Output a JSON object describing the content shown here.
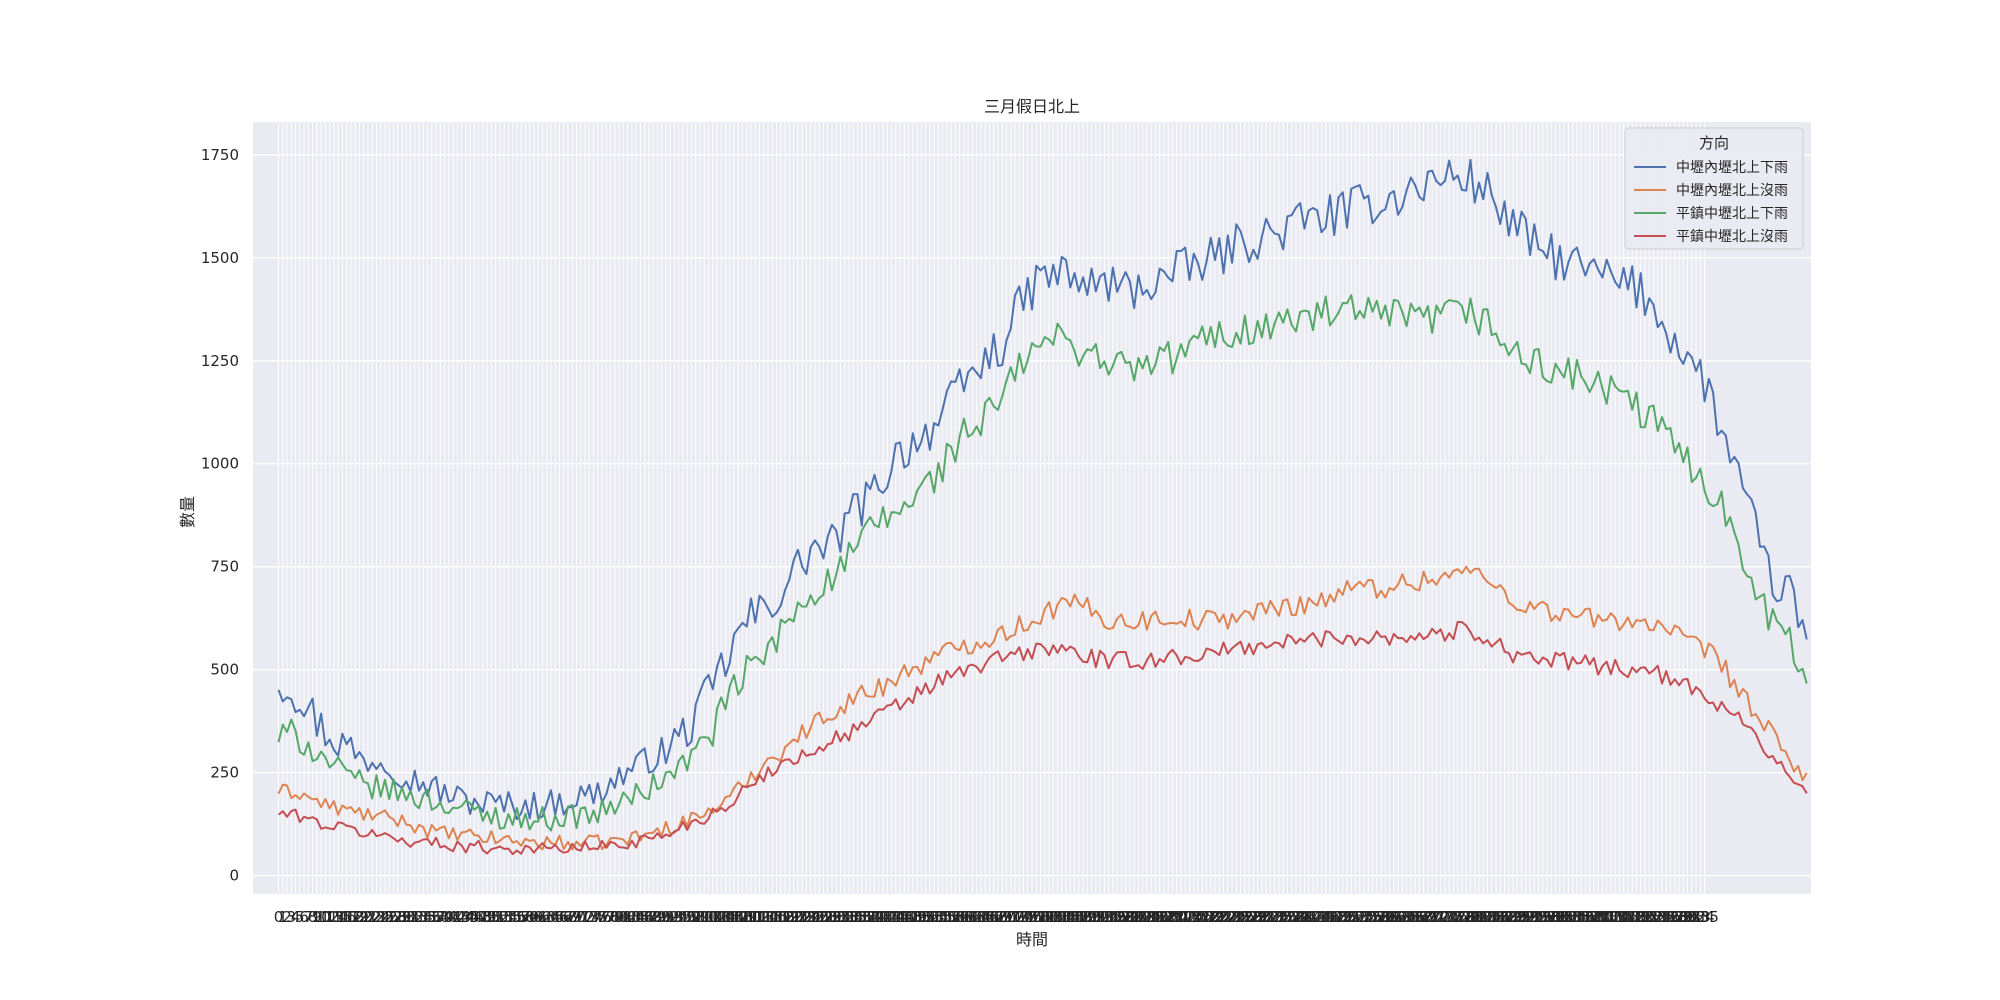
{
  "chart_data": {
    "type": "line",
    "title": "三月假日北上",
    "xlabel": "時間",
    "ylabel": "數量",
    "x": {
      "start": 0,
      "end": 335,
      "step": 1,
      "tick_labels": "0…335 (dense, overlapping)"
    },
    "xlim": [
      -6,
      360
    ],
    "ylim": [
      -45,
      1830
    ],
    "yticks": [
      0,
      250,
      500,
      750,
      1000,
      1250,
      1500,
      1750
    ],
    "grid": true,
    "legend": {
      "title": "方向",
      "placement": "top-right"
    },
    "series": [
      {
        "name": "中壢內壢北上下雨",
        "color": "#4c72b0",
        "anchors": [
          [
            0,
            475
          ],
          [
            5,
            440
          ],
          [
            10,
            360
          ],
          [
            15,
            320
          ],
          [
            20,
            280
          ],
          [
            25,
            280
          ],
          [
            30,
            240
          ],
          [
            35,
            220
          ],
          [
            40,
            195
          ],
          [
            45,
            180
          ],
          [
            50,
            175
          ],
          [
            55,
            170
          ],
          [
            60,
            170
          ],
          [
            65,
            175
          ],
          [
            70,
            190
          ],
          [
            75,
            200
          ],
          [
            80,
            240
          ],
          [
            85,
            270
          ],
          [
            90,
            300
          ],
          [
            95,
            340
          ],
          [
            100,
            420
          ],
          [
            105,
            520
          ],
          [
            110,
            620
          ],
          [
            115,
            650
          ],
          [
            120,
            720
          ],
          [
            125,
            790
          ],
          [
            130,
            800
          ],
          [
            135,
            880
          ],
          [
            140,
            930
          ],
          [
            145,
            1020
          ],
          [
            150,
            1060
          ],
          [
            155,
            1100
          ],
          [
            160,
            1180
          ],
          [
            165,
            1240
          ],
          [
            170,
            1290
          ],
          [
            175,
            1400
          ],
          [
            180,
            1460
          ],
          [
            185,
            1460
          ],
          [
            190,
            1430
          ],
          [
            195,
            1440
          ],
          [
            200,
            1420
          ],
          [
            205,
            1440
          ],
          [
            210,
            1460
          ],
          [
            215,
            1480
          ],
          [
            220,
            1500
          ],
          [
            225,
            1530
          ],
          [
            230,
            1550
          ],
          [
            235,
            1560
          ],
          [
            240,
            1590
          ],
          [
            245,
            1600
          ],
          [
            250,
            1610
          ],
          [
            255,
            1630
          ],
          [
            260,
            1640
          ],
          [
            265,
            1660
          ],
          [
            270,
            1680
          ],
          [
            275,
            1700
          ],
          [
            280,
            1690
          ],
          [
            285,
            1650
          ],
          [
            290,
            1580
          ],
          [
            295,
            1530
          ],
          [
            300,
            1500
          ],
          [
            305,
            1480
          ],
          [
            310,
            1460
          ],
          [
            315,
            1440
          ],
          [
            320,
            1420
          ],
          [
            325,
            1350
          ],
          [
            330,
            1270
          ],
          [
            335,
            1200
          ],
          [
            340,
            1050
          ],
          [
            345,
            900
          ],
          [
            350,
            730
          ],
          [
            355,
            680
          ],
          [
            359,
            580
          ]
        ]
      },
      {
        "name": "中壢內壢北上沒雨",
        "color": "#dd8452",
        "anchors": [
          [
            0,
            205
          ],
          [
            5,
            200
          ],
          [
            10,
            175
          ],
          [
            15,
            160
          ],
          [
            20,
            150
          ],
          [
            25,
            140
          ],
          [
            30,
            130
          ],
          [
            35,
            110
          ],
          [
            40,
            100
          ],
          [
            45,
            95
          ],
          [
            50,
            90
          ],
          [
            55,
            85
          ],
          [
            60,
            80
          ],
          [
            65,
            80
          ],
          [
            70,
            78
          ],
          [
            75,
            80
          ],
          [
            80,
            85
          ],
          [
            85,
            95
          ],
          [
            90,
            110
          ],
          [
            95,
            130
          ],
          [
            100,
            150
          ],
          [
            105,
            180
          ],
          [
            110,
            230
          ],
          [
            115,
            280
          ],
          [
            120,
            320
          ],
          [
            125,
            360
          ],
          [
            130,
            400
          ],
          [
            135,
            430
          ],
          [
            140,
            450
          ],
          [
            145,
            480
          ],
          [
            150,
            510
          ],
          [
            155,
            530
          ],
          [
            160,
            560
          ],
          [
            165,
            570
          ],
          [
            170,
            590
          ],
          [
            175,
            610
          ],
          [
            180,
            640
          ],
          [
            185,
            660
          ],
          [
            190,
            650
          ],
          [
            195,
            620
          ],
          [
            200,
            620
          ],
          [
            205,
            620
          ],
          [
            210,
            630
          ],
          [
            215,
            620
          ],
          [
            220,
            620
          ],
          [
            225,
            630
          ],
          [
            230,
            640
          ],
          [
            235,
            650
          ],
          [
            240,
            660
          ],
          [
            245,
            670
          ],
          [
            250,
            690
          ],
          [
            255,
            700
          ],
          [
            260,
            700
          ],
          [
            265,
            710
          ],
          [
            270,
            720
          ],
          [
            275,
            730
          ],
          [
            280,
            740
          ],
          [
            285,
            710
          ],
          [
            290,
            670
          ],
          [
            295,
            650
          ],
          [
            300,
            640
          ],
          [
            305,
            630
          ],
          [
            310,
            620
          ],
          [
            315,
            620
          ],
          [
            320,
            620
          ],
          [
            325,
            600
          ],
          [
            330,
            570
          ],
          [
            335,
            550
          ],
          [
            340,
            500
          ],
          [
            345,
            420
          ],
          [
            350,
            350
          ],
          [
            355,
            280
          ],
          [
            359,
            235
          ]
        ]
      },
      {
        "name": "平鎮中壢北上下雨",
        "color": "#55a868",
        "anchors": [
          [
            0,
            335
          ],
          [
            5,
            340
          ],
          [
            10,
            290
          ],
          [
            15,
            250
          ],
          [
            20,
            220
          ],
          [
            25,
            210
          ],
          [
            30,
            195
          ],
          [
            35,
            185
          ],
          [
            40,
            170
          ],
          [
            45,
            155
          ],
          [
            50,
            145
          ],
          [
            55,
            140
          ],
          [
            60,
            135
          ],
          [
            65,
            140
          ],
          [
            70,
            145
          ],
          [
            75,
            150
          ],
          [
            80,
            175
          ],
          [
            85,
            200
          ],
          [
            90,
            230
          ],
          [
            95,
            270
          ],
          [
            100,
            320
          ],
          [
            105,
            410
          ],
          [
            110,
            500
          ],
          [
            115,
            540
          ],
          [
            120,
            620
          ],
          [
            125,
            690
          ],
          [
            130,
            720
          ],
          [
            135,
            780
          ],
          [
            140,
            850
          ],
          [
            145,
            880
          ],
          [
            150,
            920
          ],
          [
            155,
            980
          ],
          [
            160,
            1060
          ],
          [
            165,
            1100
          ],
          [
            170,
            1160
          ],
          [
            175,
            1250
          ],
          [
            180,
            1300
          ],
          [
            185,
            1300
          ],
          [
            190,
            1270
          ],
          [
            195,
            1250
          ],
          [
            200,
            1230
          ],
          [
            205,
            1240
          ],
          [
            210,
            1260
          ],
          [
            215,
            1290
          ],
          [
            220,
            1310
          ],
          [
            225,
            1320
          ],
          [
            230,
            1330
          ],
          [
            235,
            1340
          ],
          [
            240,
            1350
          ],
          [
            245,
            1360
          ],
          [
            250,
            1370
          ],
          [
            255,
            1360
          ],
          [
            260,
            1360
          ],
          [
            265,
            1350
          ],
          [
            270,
            1350
          ],
          [
            275,
            1360
          ],
          [
            280,
            1370
          ],
          [
            285,
            1330
          ],
          [
            290,
            1270
          ],
          [
            295,
            1240
          ],
          [
            300,
            1230
          ],
          [
            305,
            1210
          ],
          [
            310,
            1190
          ],
          [
            315,
            1160
          ],
          [
            320,
            1130
          ],
          [
            325,
            1080
          ],
          [
            330,
            1020
          ],
          [
            335,
            960
          ],
          [
            340,
            880
          ],
          [
            345,
            760
          ],
          [
            350,
            640
          ],
          [
            355,
            560
          ],
          [
            359,
            480
          ]
        ]
      },
      {
        "name": "平鎮中壢北上沒雨",
        "color": "#c44e52",
        "anchors": [
          [
            0,
            150
          ],
          [
            5,
            145
          ],
          [
            10,
            125
          ],
          [
            15,
            115
          ],
          [
            20,
            105
          ],
          [
            25,
            95
          ],
          [
            30,
            85
          ],
          [
            35,
            80
          ],
          [
            40,
            75
          ],
          [
            45,
            70
          ],
          [
            50,
            68
          ],
          [
            55,
            65
          ],
          [
            60,
            65
          ],
          [
            65,
            65
          ],
          [
            70,
            67
          ],
          [
            75,
            70
          ],
          [
            80,
            75
          ],
          [
            85,
            85
          ],
          [
            90,
            95
          ],
          [
            95,
            120
          ],
          [
            100,
            140
          ],
          [
            105,
            170
          ],
          [
            110,
            210
          ],
          [
            115,
            250
          ],
          [
            120,
            280
          ],
          [
            125,
            300
          ],
          [
            130,
            330
          ],
          [
            135,
            350
          ],
          [
            140,
            380
          ],
          [
            145,
            410
          ],
          [
            150,
            440
          ],
          [
            155,
            470
          ],
          [
            160,
            490
          ],
          [
            165,
            510
          ],
          [
            170,
            530
          ],
          [
            175,
            540
          ],
          [
            180,
            550
          ],
          [
            185,
            550
          ],
          [
            190,
            530
          ],
          [
            195,
            520
          ],
          [
            200,
            520
          ],
          [
            205,
            525
          ],
          [
            210,
            530
          ],
          [
            215,
            535
          ],
          [
            220,
            540
          ],
          [
            225,
            550
          ],
          [
            230,
            560
          ],
          [
            235,
            565
          ],
          [
            240,
            570
          ],
          [
            245,
            575
          ],
          [
            250,
            580
          ],
          [
            255,
            580
          ],
          [
            260,
            580
          ],
          [
            265,
            580
          ],
          [
            270,
            585
          ],
          [
            275,
            590
          ],
          [
            280,
            600
          ],
          [
            285,
            570
          ],
          [
            290,
            540
          ],
          [
            295,
            530
          ],
          [
            300,
            520
          ],
          [
            305,
            515
          ],
          [
            310,
            510
          ],
          [
            315,
            505
          ],
          [
            320,
            500
          ],
          [
            325,
            485
          ],
          [
            330,
            460
          ],
          [
            335,
            440
          ],
          [
            340,
            410
          ],
          [
            345,
            370
          ],
          [
            350,
            300
          ],
          [
            355,
            240
          ],
          [
            359,
            190
          ]
        ]
      }
    ]
  }
}
